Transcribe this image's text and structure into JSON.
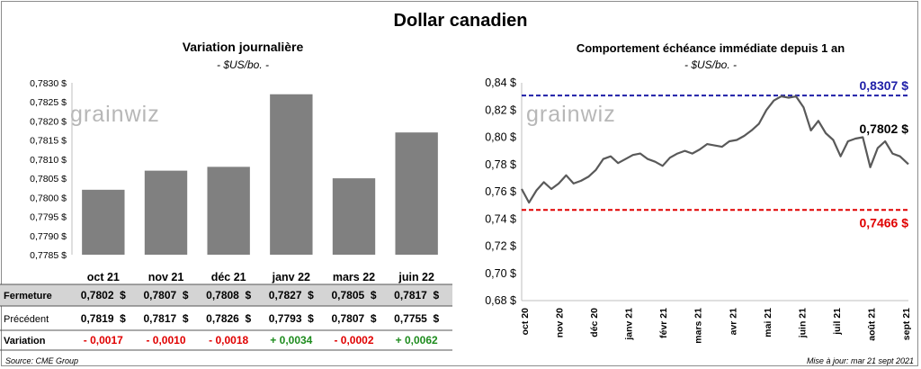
{
  "title": "Dollar canadien",
  "left_chart": {
    "title": "Variation  journalière",
    "subtitle": "- $US/bo. -",
    "watermark": "grainwiz"
  },
  "right_chart": {
    "title": "Comportement échéance immédiate depuis 1 an",
    "subtitle": "- $US/bo. -",
    "watermark": "grainwiz",
    "max_label": "0,8307 $",
    "last_label": "0,7802 $",
    "min_label": "0,7466 $"
  },
  "table": {
    "rows": [
      {
        "label": "Fermeture",
        "values": [
          "0,7802  $",
          "0,7807  $",
          "0,7808  $",
          "0,7827  $",
          "0,7805  $",
          "0,7817  $"
        ]
      },
      {
        "label": "Précédent",
        "values": [
          "0,7819  $",
          "0,7817  $",
          "0,7826  $",
          "0,7793  $",
          "0,7807  $",
          "0,7755  $"
        ]
      },
      {
        "label": "Variation",
        "values": [
          "- 0,0017",
          "- 0,0010",
          "- 0,0018",
          "+ 0,0034",
          "- 0,0002",
          "+ 0,0062"
        ]
      }
    ],
    "variation_colors": [
      "#e00000",
      "#e00000",
      "#e00000",
      "#1e8c1e",
      "#e00000",
      "#1e8c1e"
    ]
  },
  "source": "Source: CME Group",
  "updated": "Mise à jour: mar 21 sept 2021",
  "colors": {
    "bar": "#808080",
    "line": "#595959",
    "max_line": "#1f1fa8",
    "min_line": "#e00000",
    "positive": "#1e8c1e",
    "negative": "#e00000"
  },
  "chart_data": [
    {
      "type": "bar",
      "title": "Variation  journalière",
      "subtitle": "- $US/bo. -",
      "categories": [
        "oct 21",
        "nov 21",
        "déc 21",
        "janv 22",
        "mars 22",
        "juin 22"
      ],
      "values": [
        0.7802,
        0.7807,
        0.7808,
        0.7827,
        0.7805,
        0.7817
      ],
      "ylim": [
        0.7785,
        0.783
      ],
      "yticks": [
        "0,7785 $",
        "0,7790 $",
        "0,7795 $",
        "0,7800 $",
        "0,7805 $",
        "0,7810 $",
        "0,7815 $",
        "0,7820 $",
        "0,7825 $",
        "0,7830 $"
      ],
      "grid": false
    },
    {
      "type": "line",
      "title": "Comportement échéance immédiate depuis 1 an",
      "subtitle": "- $US/bo. -",
      "ylim": [
        0.68,
        0.84
      ],
      "yticks": [
        "0,68 $",
        "0,70 $",
        "0,72 $",
        "0,74 $",
        "0,76 $",
        "0,78 $",
        "0,80 $",
        "0,82 $",
        "0,84 $"
      ],
      "xticks": [
        "oct 20",
        "nov 20",
        "déc 20",
        "janv 21",
        "févr 21",
        "mars 21",
        "avr 21",
        "mai 21",
        "juin 21",
        "juil 21",
        "août 21",
        "sept 21"
      ],
      "x": [
        "2020-09-21",
        "2020-09-28",
        "2020-10-05",
        "2020-10-12",
        "2020-10-19",
        "2020-10-26",
        "2020-11-02",
        "2020-11-09",
        "2020-11-16",
        "2020-11-23",
        "2020-11-30",
        "2020-12-07",
        "2020-12-14",
        "2020-12-21",
        "2020-12-28",
        "2021-01-04",
        "2021-01-11",
        "2021-01-18",
        "2021-01-25",
        "2021-02-01",
        "2021-02-08",
        "2021-02-15",
        "2021-02-22",
        "2021-03-01",
        "2021-03-08",
        "2021-03-15",
        "2021-03-22",
        "2021-03-29",
        "2021-04-05",
        "2021-04-12",
        "2021-04-19",
        "2021-04-26",
        "2021-05-03",
        "2021-05-10",
        "2021-05-17",
        "2021-05-24",
        "2021-05-31",
        "2021-06-07",
        "2021-06-14",
        "2021-06-21",
        "2021-06-28",
        "2021-07-05",
        "2021-07-12",
        "2021-07-19",
        "2021-07-26",
        "2021-08-02",
        "2021-08-09",
        "2021-08-16",
        "2021-08-23",
        "2021-08-30",
        "2021-09-06",
        "2021-09-13",
        "2021-09-21"
      ],
      "values": [
        0.762,
        0.752,
        0.761,
        0.767,
        0.762,
        0.766,
        0.772,
        0.766,
        0.768,
        0.771,
        0.776,
        0.784,
        0.786,
        0.781,
        0.784,
        0.787,
        0.788,
        0.784,
        0.782,
        0.779,
        0.785,
        0.788,
        0.79,
        0.788,
        0.791,
        0.795,
        0.794,
        0.793,
        0.797,
        0.798,
        0.801,
        0.805,
        0.81,
        0.82,
        0.827,
        0.83,
        0.829,
        0.83,
        0.822,
        0.805,
        0.812,
        0.803,
        0.798,
        0.786,
        0.797,
        0.799,
        0.8,
        0.778,
        0.792,
        0.797,
        0.788,
        0.786,
        0.7802
      ],
      "reference_lines": [
        {
          "value": 0.8307,
          "label": "0,8307 $"
        },
        {
          "value": 0.7466,
          "label": "0,7466 $"
        }
      ],
      "last_value_label": "0,7802 $",
      "grid": false
    }
  ]
}
